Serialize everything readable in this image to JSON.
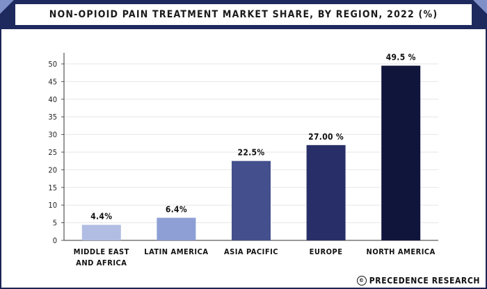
{
  "title": "NON-OPIOID PAIN TREATMENT MARKET SHARE, BY REGION, 2022 (%)",
  "brand": {
    "text": "PRECEDENCE RESEARCH",
    "icon": "copyright-icon"
  },
  "colors": {
    "frame": "#1c2452",
    "corner_accent": "#7f8fc8",
    "bars": [
      "#b2bde3",
      "#8d9fd4",
      "#444f8d",
      "#282f68",
      "#10153c"
    ]
  },
  "chart_data": {
    "type": "bar",
    "title": "NON-OPIOID PAIN TREATMENT MARKET SHARE, BY REGION, 2022 (%)",
    "categories": [
      [
        "MIDDLE EAST",
        "AND AFRICA"
      ],
      [
        "LATIN AMERICA"
      ],
      [
        "ASIA PACIFIC"
      ],
      [
        "EUROPE"
      ],
      [
        "NORTH AMERICA"
      ]
    ],
    "values": [
      4.4,
      6.4,
      22.5,
      27.0,
      49.5
    ],
    "data_labels": [
      "4.4%",
      "6.4%",
      "22.5%",
      "27.00 %",
      "49.5 %"
    ],
    "yticks": [
      0,
      5,
      10,
      15,
      20,
      25,
      30,
      35,
      40,
      45,
      50
    ],
    "ylim": [
      0,
      50
    ],
    "xlabel": "",
    "ylabel": "",
    "grid": true
  }
}
